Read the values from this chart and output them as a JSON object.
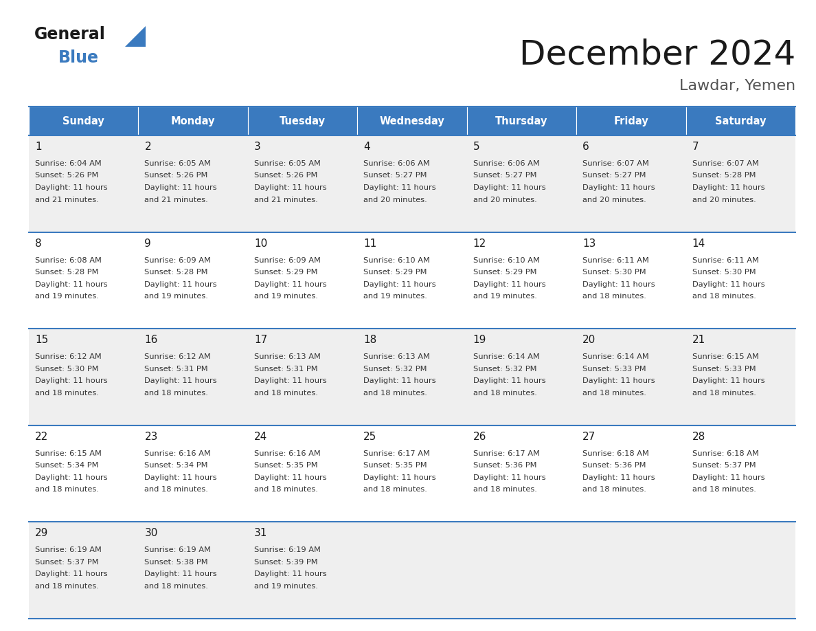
{
  "title": "December 2024",
  "subtitle": "Lawdar, Yemen",
  "header_color": "#3a7abf",
  "header_text_color": "#ffffff",
  "bg_color": "#ffffff",
  "cell_bg_alt": "#efefef",
  "cell_bg_white": "#ffffff",
  "border_color": "#3a7abf",
  "days_of_week": [
    "Sunday",
    "Monday",
    "Tuesday",
    "Wednesday",
    "Thursday",
    "Friday",
    "Saturday"
  ],
  "weeks": [
    [
      {
        "day": 1,
        "sunrise": "6:04 AM",
        "sunset": "5:26 PM",
        "daylight_hours": 11,
        "daylight_mins": "21"
      },
      {
        "day": 2,
        "sunrise": "6:05 AM",
        "sunset": "5:26 PM",
        "daylight_hours": 11,
        "daylight_mins": "21"
      },
      {
        "day": 3,
        "sunrise": "6:05 AM",
        "sunset": "5:26 PM",
        "daylight_hours": 11,
        "daylight_mins": "21"
      },
      {
        "day": 4,
        "sunrise": "6:06 AM",
        "sunset": "5:27 PM",
        "daylight_hours": 11,
        "daylight_mins": "20"
      },
      {
        "day": 5,
        "sunrise": "6:06 AM",
        "sunset": "5:27 PM",
        "daylight_hours": 11,
        "daylight_mins": "20"
      },
      {
        "day": 6,
        "sunrise": "6:07 AM",
        "sunset": "5:27 PM",
        "daylight_hours": 11,
        "daylight_mins": "20"
      },
      {
        "day": 7,
        "sunrise": "6:07 AM",
        "sunset": "5:28 PM",
        "daylight_hours": 11,
        "daylight_mins": "20"
      }
    ],
    [
      {
        "day": 8,
        "sunrise": "6:08 AM",
        "sunset": "5:28 PM",
        "daylight_hours": 11,
        "daylight_mins": "19"
      },
      {
        "day": 9,
        "sunrise": "6:09 AM",
        "sunset": "5:28 PM",
        "daylight_hours": 11,
        "daylight_mins": "19"
      },
      {
        "day": 10,
        "sunrise": "6:09 AM",
        "sunset": "5:29 PM",
        "daylight_hours": 11,
        "daylight_mins": "19"
      },
      {
        "day": 11,
        "sunrise": "6:10 AM",
        "sunset": "5:29 PM",
        "daylight_hours": 11,
        "daylight_mins": "19"
      },
      {
        "day": 12,
        "sunrise": "6:10 AM",
        "sunset": "5:29 PM",
        "daylight_hours": 11,
        "daylight_mins": "19"
      },
      {
        "day": 13,
        "sunrise": "6:11 AM",
        "sunset": "5:30 PM",
        "daylight_hours": 11,
        "daylight_mins": "18"
      },
      {
        "day": 14,
        "sunrise": "6:11 AM",
        "sunset": "5:30 PM",
        "daylight_hours": 11,
        "daylight_mins": "18"
      }
    ],
    [
      {
        "day": 15,
        "sunrise": "6:12 AM",
        "sunset": "5:30 PM",
        "daylight_hours": 11,
        "daylight_mins": "18"
      },
      {
        "day": 16,
        "sunrise": "6:12 AM",
        "sunset": "5:31 PM",
        "daylight_hours": 11,
        "daylight_mins": "18"
      },
      {
        "day": 17,
        "sunrise": "6:13 AM",
        "sunset": "5:31 PM",
        "daylight_hours": 11,
        "daylight_mins": "18"
      },
      {
        "day": 18,
        "sunrise": "6:13 AM",
        "sunset": "5:32 PM",
        "daylight_hours": 11,
        "daylight_mins": "18"
      },
      {
        "day": 19,
        "sunrise": "6:14 AM",
        "sunset": "5:32 PM",
        "daylight_hours": 11,
        "daylight_mins": "18"
      },
      {
        "day": 20,
        "sunrise": "6:14 AM",
        "sunset": "5:33 PM",
        "daylight_hours": 11,
        "daylight_mins": "18"
      },
      {
        "day": 21,
        "sunrise": "6:15 AM",
        "sunset": "5:33 PM",
        "daylight_hours": 11,
        "daylight_mins": "18"
      }
    ],
    [
      {
        "day": 22,
        "sunrise": "6:15 AM",
        "sunset": "5:34 PM",
        "daylight_hours": 11,
        "daylight_mins": "18"
      },
      {
        "day": 23,
        "sunrise": "6:16 AM",
        "sunset": "5:34 PM",
        "daylight_hours": 11,
        "daylight_mins": "18"
      },
      {
        "day": 24,
        "sunrise": "6:16 AM",
        "sunset": "5:35 PM",
        "daylight_hours": 11,
        "daylight_mins": "18"
      },
      {
        "day": 25,
        "sunrise": "6:17 AM",
        "sunset": "5:35 PM",
        "daylight_hours": 11,
        "daylight_mins": "18"
      },
      {
        "day": 26,
        "sunrise": "6:17 AM",
        "sunset": "5:36 PM",
        "daylight_hours": 11,
        "daylight_mins": "18"
      },
      {
        "day": 27,
        "sunrise": "6:18 AM",
        "sunset": "5:36 PM",
        "daylight_hours": 11,
        "daylight_mins": "18"
      },
      {
        "day": 28,
        "sunrise": "6:18 AM",
        "sunset": "5:37 PM",
        "daylight_hours": 11,
        "daylight_mins": "18"
      }
    ],
    [
      {
        "day": 29,
        "sunrise": "6:19 AM",
        "sunset": "5:37 PM",
        "daylight_hours": 11,
        "daylight_mins": "18"
      },
      {
        "day": 30,
        "sunrise": "6:19 AM",
        "sunset": "5:38 PM",
        "daylight_hours": 11,
        "daylight_mins": "18"
      },
      {
        "day": 31,
        "sunrise": "6:19 AM",
        "sunset": "5:39 PM",
        "daylight_hours": 11,
        "daylight_mins": "19"
      },
      null,
      null,
      null,
      null
    ]
  ],
  "logo_general_color": "#1a1a1a",
  "logo_blue_color": "#3a7abf",
  "title_color": "#1a1a1a",
  "subtitle_color": "#555555",
  "day_num_color": "#1a1a1a",
  "cell_text_color": "#333333"
}
